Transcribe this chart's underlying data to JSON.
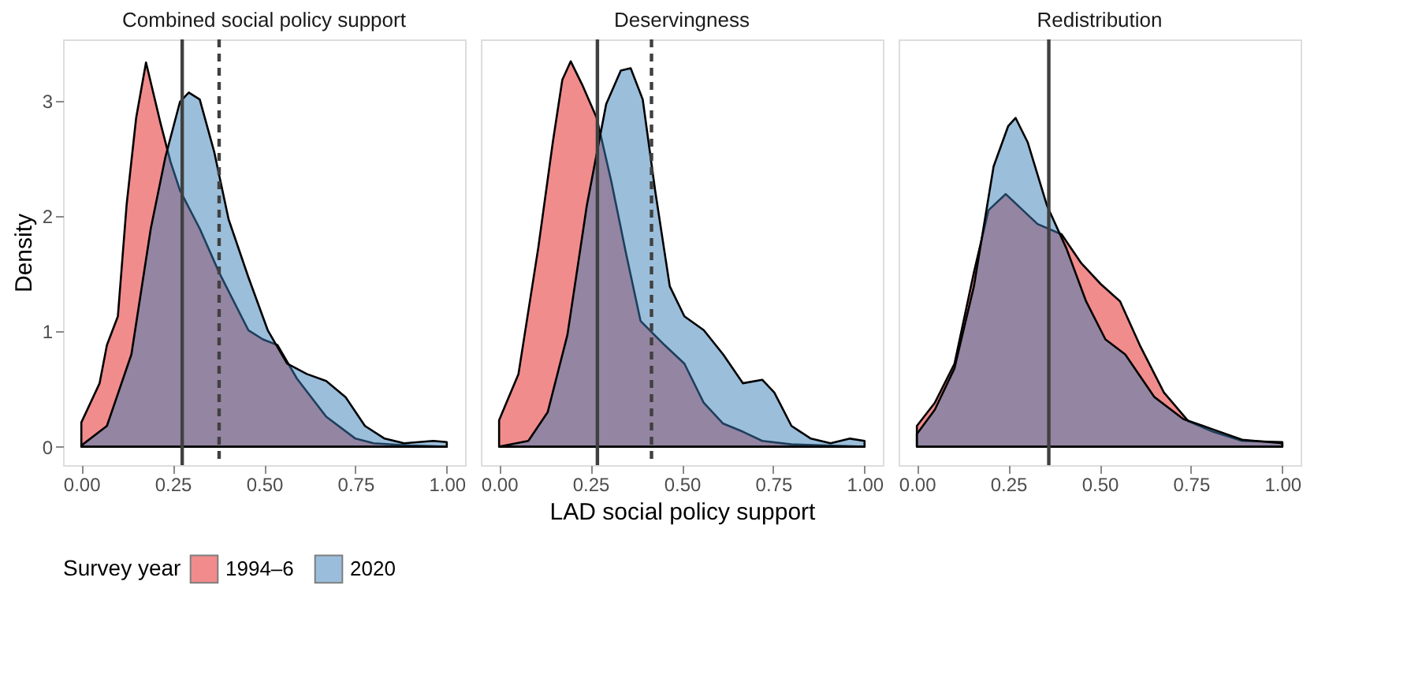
{
  "chart_data": [
    {
      "type": "area",
      "title": "Combined social policy support",
      "ylabel": "Density",
      "legend_title": "Survey year",
      "legend": "bottom",
      "xlim": [
        -0.05,
        1.05
      ],
      "ylim": [
        -0.16,
        3.53
      ],
      "xticks": [
        {
          "value": 0,
          "label": "0.00"
        },
        {
          "value": 0.25,
          "label": "0.25"
        },
        {
          "value": 0.5,
          "label": "0.50"
        },
        {
          "value": 0.75,
          "label": "0.75"
        },
        {
          "value": 1,
          "label": "1.00"
        }
      ],
      "yticks": [
        0,
        1,
        2,
        3
      ],
      "grid": false,
      "series": [
        {
          "name": "1994–6",
          "color": "#e41a1c",
          "x": [
            0,
            0.05,
            0.07,
            0.1,
            0.124,
            0.15,
            0.177,
            0.217,
            0.244,
            0.27,
            0.324,
            0.377,
            0.457,
            0.497,
            0.537,
            0.59,
            0.67,
            0.75,
            0.8,
            0.9,
            1.0
          ],
          "values": [
            0.21,
            0.55,
            0.88,
            1.13,
            2.1,
            2.85,
            3.33,
            2.8,
            2.47,
            2.22,
            1.89,
            1.51,
            1.01,
            0.93,
            0.88,
            0.59,
            0.26,
            0.07,
            0.03,
            0.01,
            0
          ]
        },
        {
          "name": "2020",
          "color": "#377eb8",
          "x": [
            0,
            0.07,
            0.137,
            0.19,
            0.23,
            0.27,
            0.294,
            0.324,
            0.364,
            0.403,
            0.457,
            0.51,
            0.563,
            0.617,
            0.67,
            0.723,
            0.776,
            0.83,
            0.883,
            0.963,
            1.0
          ],
          "values": [
            0.01,
            0.18,
            0.8,
            1.89,
            2.51,
            2.99,
            3.07,
            3.01,
            2.55,
            1.97,
            1.47,
            1.01,
            0.72,
            0.63,
            0.57,
            0.43,
            0.18,
            0.07,
            0.03,
            0.05,
            0.04
          ]
        }
      ],
      "ref_lines": [
        {
          "axis": "x",
          "value": 0.276,
          "color": "#404040",
          "line_style": "solid"
        },
        {
          "axis": "x",
          "value": 0.377,
          "color": "#404040",
          "line_style": "dashed"
        }
      ]
    },
    {
      "type": "area",
      "title": "Deservingness",
      "xlabel": "LAD social policy support",
      "legend": "bottom",
      "tick_labels": "x",
      "xlim": [
        -0.05,
        1.05
      ],
      "ylim": [
        -0.16,
        3.53
      ],
      "xticks": [
        {
          "value": 0,
          "label": "0.00"
        },
        {
          "value": 0.25,
          "label": "0.25"
        },
        {
          "value": 0.5,
          "label": "0.50"
        },
        {
          "value": 0.75,
          "label": "0.75"
        },
        {
          "value": 1,
          "label": "1.00"
        }
      ],
      "yticks": [
        0,
        1,
        2,
        3
      ],
      "grid": false,
      "series": [
        {
          "name": "1994–6",
          "color": "#e41a1c",
          "x": [
            0,
            0.053,
            0.107,
            0.147,
            0.173,
            0.196,
            0.227,
            0.267,
            0.307,
            0.347,
            0.387,
            0.453,
            0.507,
            0.56,
            0.613,
            0.667,
            0.72,
            0.8,
            1.0
          ],
          "values": [
            0.23,
            0.63,
            1.72,
            2.64,
            3.18,
            3.34,
            3.14,
            2.85,
            2.3,
            1.68,
            1.09,
            0.88,
            0.72,
            0.38,
            0.2,
            0.13,
            0.05,
            0.02,
            0
          ]
        },
        {
          "name": "2020",
          "color": "#377eb8",
          "x": [
            0,
            0.08,
            0.133,
            0.187,
            0.24,
            0.293,
            0.333,
            0.36,
            0.393,
            0.427,
            0.467,
            0.507,
            0.56,
            0.613,
            0.667,
            0.72,
            0.753,
            0.8,
            0.853,
            0.907,
            0.96,
            1.0
          ],
          "values": [
            0,
            0.05,
            0.3,
            0.97,
            2.09,
            2.97,
            3.26,
            3.28,
            3.01,
            2.22,
            1.39,
            1.13,
            1.01,
            0.8,
            0.55,
            0.58,
            0.47,
            0.18,
            0.07,
            0.03,
            0.07,
            0.05
          ]
        }
      ],
      "ref_lines": [
        {
          "axis": "x",
          "value": 0.269,
          "color": "#404040",
          "line_style": "solid"
        },
        {
          "axis": "x",
          "value": 0.417,
          "color": "#404040",
          "line_style": "dashed"
        }
      ]
    },
    {
      "type": "area",
      "title": "Redistribution",
      "legend": "bottom",
      "tick_labels": "x",
      "xlim": [
        -0.05,
        1.05
      ],
      "ylim": [
        -0.16,
        3.53
      ],
      "xticks": [
        {
          "value": 0,
          "label": "0.00"
        },
        {
          "value": 0.25,
          "label": "0.25"
        },
        {
          "value": 0.5,
          "label": "0.50"
        },
        {
          "value": 0.75,
          "label": "0.75"
        },
        {
          "value": 1,
          "label": "1.00"
        }
      ],
      "yticks": [
        0,
        1,
        2,
        3
      ],
      "grid": false,
      "series": [
        {
          "name": "1994–6",
          "color": "#e41a1c",
          "x": [
            0,
            0.049,
            0.103,
            0.156,
            0.196,
            0.243,
            0.29,
            0.33,
            0.396,
            0.45,
            0.503,
            0.556,
            0.61,
            0.676,
            0.743,
            0.81,
            0.89,
            1.0
          ],
          "values": [
            0.18,
            0.38,
            0.72,
            1.51,
            2.05,
            2.19,
            2.05,
            1.93,
            1.84,
            1.59,
            1.41,
            1.26,
            0.88,
            0.47,
            0.22,
            0.13,
            0.05,
            0.04
          ]
        },
        {
          "name": "2020",
          "color": "#377eb8",
          "x": [
            0,
            0.049,
            0.103,
            0.156,
            0.21,
            0.25,
            0.27,
            0.303,
            0.356,
            0.409,
            0.463,
            0.516,
            0.57,
            0.65,
            0.729,
            0.81,
            0.89,
            1.0
          ],
          "values": [
            0.11,
            0.32,
            0.68,
            1.39,
            2.43,
            2.78,
            2.85,
            2.64,
            2.09,
            1.72,
            1.26,
            0.93,
            0.8,
            0.43,
            0.24,
            0.15,
            0.06,
            0.03
          ]
        }
      ],
      "ref_lines": [
        {
          "axis": "x",
          "value": 0.361,
          "color": "#404040",
          "line_style": "solid"
        }
      ]
    }
  ]
}
